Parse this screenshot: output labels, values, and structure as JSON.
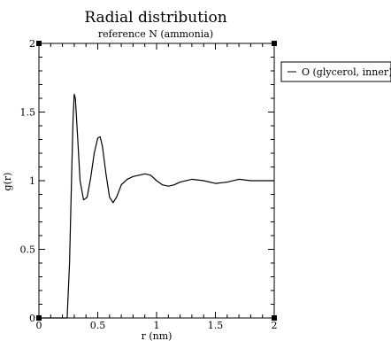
{
  "chart_data": {
    "type": "line",
    "title": "Radial distribution",
    "subtitle": "reference N (ammonia)",
    "xlabel": "r (nm)",
    "ylabel": "g(r)",
    "xlim": [
      0,
      2
    ],
    "ylim": [
      0,
      2
    ],
    "x_ticks": [
      0,
      0.5,
      1,
      1.5,
      2
    ],
    "x_tick_labels": [
      "0",
      "0.5",
      "1",
      "1.5",
      "2"
    ],
    "y_ticks": [
      0,
      0.5,
      1,
      1.5,
      2
    ],
    "y_tick_labels": [
      "0",
      "0.5",
      "1",
      "1.5",
      "2"
    ],
    "grid": false,
    "legend_position": "outside-right-top",
    "series": [
      {
        "name": "O (glycerol, inner)",
        "color": "#000000",
        "x": [
          0.0,
          0.2,
          0.24,
          0.26,
          0.28,
          0.29,
          0.3,
          0.31,
          0.33,
          0.35,
          0.38,
          0.41,
          0.44,
          0.47,
          0.5,
          0.52,
          0.54,
          0.57,
          0.6,
          0.63,
          0.66,
          0.7,
          0.75,
          0.8,
          0.85,
          0.9,
          0.95,
          1.0,
          1.05,
          1.1,
          1.15,
          1.2,
          1.3,
          1.4,
          1.5,
          1.6,
          1.7,
          1.8,
          1.9,
          2.0
        ],
        "y": [
          0.0,
          0.0,
          0.0,
          0.4,
          1.1,
          1.45,
          1.63,
          1.6,
          1.3,
          1.0,
          0.86,
          0.88,
          1.02,
          1.2,
          1.31,
          1.32,
          1.25,
          1.05,
          0.88,
          0.84,
          0.88,
          0.97,
          1.01,
          1.03,
          1.04,
          1.05,
          1.04,
          1.0,
          0.97,
          0.96,
          0.97,
          0.99,
          1.01,
          1.0,
          0.98,
          0.99,
          1.01,
          1.0,
          1.0,
          1.0
        ]
      }
    ]
  }
}
